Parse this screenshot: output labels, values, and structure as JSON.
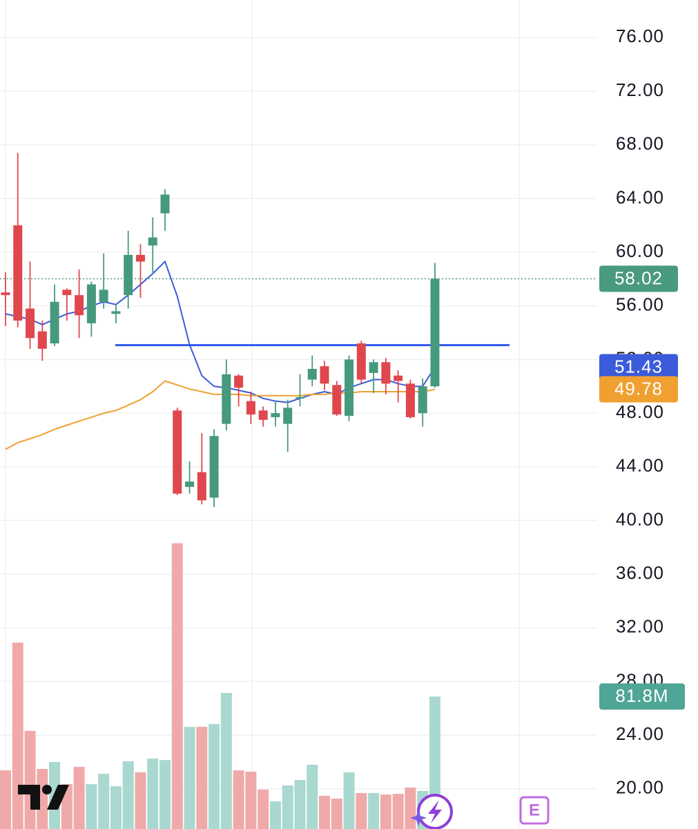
{
  "chart_data": {
    "type": "candlestick",
    "ylim": [
      17.0,
      78.8
    ],
    "yticks": [
      {
        "value": 76,
        "label": "76.00"
      },
      {
        "value": 72,
        "label": "72.00"
      },
      {
        "value": 68,
        "label": "68.00"
      },
      {
        "value": 64,
        "label": "64.00"
      },
      {
        "value": 60,
        "label": "60.00"
      },
      {
        "value": 56,
        "label": "56.00"
      },
      {
        "value": 52,
        "label": "52.00"
      },
      {
        "value": 48,
        "label": "48.00"
      },
      {
        "value": 44,
        "label": "44.00"
      },
      {
        "value": 40,
        "label": "40.00"
      },
      {
        "value": 36,
        "label": "36.00"
      },
      {
        "value": 32,
        "label": "32.00"
      },
      {
        "value": 28,
        "label": "28.00"
      },
      {
        "value": 24,
        "label": "24.00"
      },
      {
        "value": 20,
        "label": "20.00"
      }
    ],
    "grid": true,
    "up_color": "#46997c",
    "down_color": "#e0474d",
    "open": [
      57.0,
      62.0,
      55.8,
      54.1,
      53.2,
      57.2,
      56.8,
      54.7,
      56.3,
      55.4,
      56.8,
      59.8,
      60.5,
      62.9,
      48.2,
      42.5,
      43.6,
      41.7,
      47.2,
      50.8,
      48.9,
      48.2,
      47.7,
      47.2,
      49.1,
      50.5,
      51.5,
      50.1,
      47.8,
      53.2,
      51.0,
      51.8,
      50.8,
      50.2,
      48.0,
      50.0
    ],
    "high": [
      58.5,
      67.4,
      59.3,
      54.9,
      57.6,
      57.3,
      58.7,
      57.8,
      59.9,
      56.1,
      61.6,
      60.6,
      62.6,
      64.7,
      48.4,
      44.4,
      46.5,
      46.8,
      52.0,
      50.9,
      49.6,
      48.5,
      48.9,
      49.0,
      50.9,
      52.3,
      51.9,
      50.4,
      52.3,
      53.4,
      52.0,
      52.1,
      51.2,
      50.5,
      50.6,
      59.2
    ],
    "low": [
      54.5,
      54.4,
      52.8,
      51.9,
      53.0,
      54.9,
      53.6,
      53.7,
      55.8,
      54.7,
      55.8,
      56.6,
      58.5,
      61.6,
      41.9,
      42.0,
      41.2,
      41.0,
      46.7,
      48.5,
      47.2,
      47.0,
      47.0,
      45.1,
      48.5,
      50.0,
      49.7,
      47.8,
      47.4,
      50.2,
      49.5,
      49.4,
      48.8,
      47.6,
      47.0,
      49.9
    ],
    "close": [
      56.8,
      54.9,
      53.6,
      52.8,
      56.3,
      56.8,
      55.3,
      57.6,
      57.2,
      55.6,
      59.8,
      59.3,
      61.1,
      64.3,
      42.0,
      42.9,
      41.5,
      46.3,
      50.9,
      49.9,
      47.9,
      47.5,
      48.0,
      48.4,
      49.2,
      51.3,
      50.2,
      47.9,
      52.0,
      50.5,
      51.8,
      50.2,
      50.4,
      47.7,
      50.0,
      58.02
    ],
    "last_price_color": "#4a9a80",
    "moving_averages": [
      {
        "color": "#3b5bdb",
        "values": [
          55.4,
          55.2,
          55.0,
          54.6,
          55.0,
          55.4,
          55.6,
          56.0,
          56.3,
          56.1,
          56.8,
          57.6,
          58.4,
          59.3,
          56.7,
          53.1,
          50.8,
          50.0,
          49.9,
          49.7,
          49.5,
          49.1,
          48.9,
          48.8,
          49.1,
          49.4,
          49.6,
          49.4,
          49.9,
          50.2,
          50.5,
          50.5,
          50.2,
          50.0,
          50.0,
          51.43
        ]
      },
      {
        "color": "#f0a030",
        "values": [
          45.3,
          45.8,
          46.1,
          46.4,
          46.8,
          47.1,
          47.4,
          47.7,
          48.0,
          48.2,
          48.6,
          49.0,
          49.6,
          50.4,
          50.1,
          49.8,
          49.6,
          49.4,
          49.4,
          49.4,
          49.3,
          49.3,
          49.3,
          49.3,
          49.3,
          49.4,
          49.4,
          49.5,
          49.5,
          49.6,
          49.6,
          49.6,
          49.6,
          49.6,
          49.6,
          49.78
        ]
      }
    ],
    "hline": {
      "value": 53.07,
      "color": "#2f56f0"
    },
    "volume": {
      "ylim": [
        0,
        512
      ],
      "up_color": "#a8d8d0",
      "down_color": "#f0a9a9",
      "badge_color": "#4fa596",
      "values": [
        36.2,
        115.1,
        60.6,
        37.1,
        41.4,
        27.7,
        38.4,
        27.7,
        34.1,
        26.4,
        41.8,
        35.0,
        43.5,
        42.6,
        176.5,
        63.1,
        63.1,
        64.8,
        84.0,
        36.2,
        35.4,
        24.3,
        17.1,
        26.9,
        30.3,
        39.7,
        20.5,
        18.8,
        35.0,
        22.2,
        22.2,
        21.3,
        21.7,
        25.6,
        23.5,
        81.8
      ],
      "value_labels": [
        null,
        null,
        null,
        null,
        null,
        null,
        null,
        null,
        null,
        null,
        null,
        null,
        null,
        null,
        null,
        null,
        null,
        null,
        null,
        null,
        null,
        null,
        null,
        null,
        null,
        null,
        null,
        null,
        null,
        null,
        null,
        null,
        null,
        null,
        null,
        "81.8M"
      ]
    },
    "events_label": "E"
  }
}
